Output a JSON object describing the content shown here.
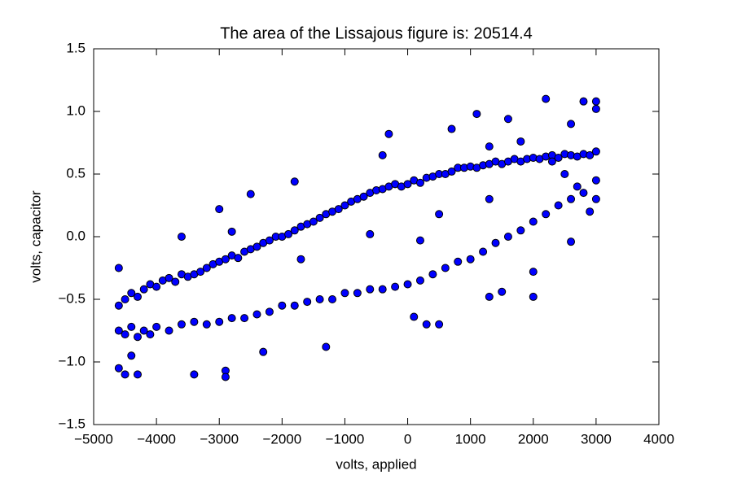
{
  "chart_data": {
    "type": "scatter",
    "title": "The area of the Lissajous figure is: 20514.4",
    "x_label": "volts, applied",
    "y_label": "volts, capacitor",
    "color": "#0000ff",
    "xlim": [
      -5000,
      4000
    ],
    "ylim": [
      -1.5,
      1.5
    ],
    "xticks": [
      {
        "value": -5000,
        "label": "−5000"
      },
      {
        "value": -4000,
        "label": "−4000"
      },
      {
        "value": -3000,
        "label": "−3000"
      },
      {
        "value": -2000,
        "label": "−2000"
      },
      {
        "value": -1000,
        "label": "−1000"
      },
      0,
      1000,
      2000,
      3000,
      4000
    ],
    "yticks": [
      {
        "value": -1.5,
        "label": "−1.5"
      },
      {
        "value": -1.0,
        "label": "−1.0"
      },
      {
        "value": -0.5,
        "label": "−0.5"
      },
      {
        "value": 0,
        "label": "0.0"
      },
      0.5,
      {
        "value": 1.0,
        "label": "1.0"
      },
      1.5
    ],
    "x": [
      -4600,
      -4500,
      -4400,
      -4300,
      -4200,
      -4100,
      -4000,
      -3900,
      -3800,
      -3700,
      -3600,
      -3500,
      -3400,
      -3300,
      -3200,
      -3100,
      -3000,
      -2900,
      -2800,
      -2700,
      -2600,
      -2500,
      -2400,
      -2300,
      -2200,
      -2100,
      -2000,
      -1900,
      -1800,
      -1700,
      -1600,
      -1500,
      -1400,
      -1300,
      -1200,
      -1100,
      -1000,
      -900,
      -800,
      -700,
      -600,
      -500,
      -400,
      -300,
      -200,
      -100,
      0,
      100,
      200,
      300,
      400,
      500,
      600,
      700,
      800,
      900,
      1000,
      1100,
      1200,
      1300,
      1400,
      1500,
      1600,
      1700,
      1800,
      1900,
      2000,
      2100,
      2200,
      2300,
      2400,
      2500,
      2600,
      2700,
      2800,
      2900,
      3000,
      -4600,
      -4500,
      -4400,
      -4300,
      -4200,
      -4100,
      -4000,
      -3800,
      -3600,
      -3400,
      -3200,
      -3000,
      -2800,
      -2600,
      -2400,
      -2200,
      -2000,
      -1800,
      -1600,
      -1400,
      -1200,
      -1000,
      -800,
      -600,
      -400,
      -200,
      0,
      200,
      400,
      600,
      800,
      1000,
      1200,
      1400,
      1600,
      1800,
      2000,
      2200,
      2400,
      2600,
      2800,
      3000,
      3000,
      2900,
      2700,
      2500,
      -4600,
      -4500,
      -4300,
      -4600,
      -4400,
      -3400,
      -2900,
      -2900,
      -2300,
      -1300,
      -3000,
      -3600,
      -2500,
      -2800,
      -1800,
      -1700,
      -600,
      -400,
      -300,
      100,
      300,
      500,
      700,
      1100,
      1300,
      1300,
      1500,
      1600,
      1800,
      2000,
      2000,
      2200,
      2600,
      2800,
      3000,
      3000,
      2600,
      1300,
      2300,
      500,
      200
    ],
    "values": [
      -0.55,
      -0.5,
      -0.45,
      -0.48,
      -0.42,
      -0.38,
      -0.4,
      -0.35,
      -0.33,
      -0.36,
      -0.3,
      -0.32,
      -0.3,
      -0.28,
      -0.25,
      -0.22,
      -0.2,
      -0.18,
      -0.15,
      -0.17,
      -0.12,
      -0.1,
      -0.08,
      -0.05,
      -0.03,
      0.0,
      0.0,
      0.02,
      0.05,
      0.08,
      0.1,
      0.12,
      0.15,
      0.18,
      0.2,
      0.22,
      0.25,
      0.28,
      0.3,
      0.32,
      0.35,
      0.37,
      0.38,
      0.4,
      0.42,
      0.4,
      0.42,
      0.45,
      0.43,
      0.47,
      0.48,
      0.5,
      0.5,
      0.52,
      0.55,
      0.55,
      0.56,
      0.55,
      0.57,
      0.58,
      0.6,
      0.58,
      0.6,
      0.62,
      0.6,
      0.62,
      0.63,
      0.62,
      0.64,
      0.65,
      0.63,
      0.66,
      0.65,
      0.64,
      0.66,
      0.65,
      0.68,
      -0.75,
      -0.78,
      -0.72,
      -0.8,
      -0.75,
      -0.78,
      -0.72,
      -0.75,
      -0.7,
      -0.68,
      -0.7,
      -0.68,
      -0.65,
      -0.65,
      -0.62,
      -0.6,
      -0.55,
      -0.55,
      -0.52,
      -0.5,
      -0.5,
      -0.45,
      -0.45,
      -0.42,
      -0.42,
      -0.4,
      -0.38,
      -0.35,
      -0.3,
      -0.25,
      -0.2,
      -0.18,
      -0.12,
      -0.05,
      0.0,
      0.05,
      0.12,
      0.18,
      0.25,
      0.3,
      0.35,
      0.45,
      0.3,
      0.2,
      0.4,
      0.5,
      -0.25,
      -1.1,
      -1.1,
      -1.05,
      -0.95,
      -1.1,
      -1.07,
      -1.12,
      -0.92,
      -0.88,
      0.22,
      0.0,
      0.34,
      0.04,
      0.44,
      -0.18,
      0.02,
      0.65,
      0.82,
      -0.64,
      -0.7,
      -0.7,
      0.86,
      0.98,
      0.72,
      -0.48,
      -0.44,
      0.94,
      0.76,
      -0.28,
      -0.48,
      1.1,
      0.9,
      1.08,
      1.08,
      1.02,
      -0.04,
      0.3,
      0.6,
      0.18,
      -0.03
    ]
  }
}
